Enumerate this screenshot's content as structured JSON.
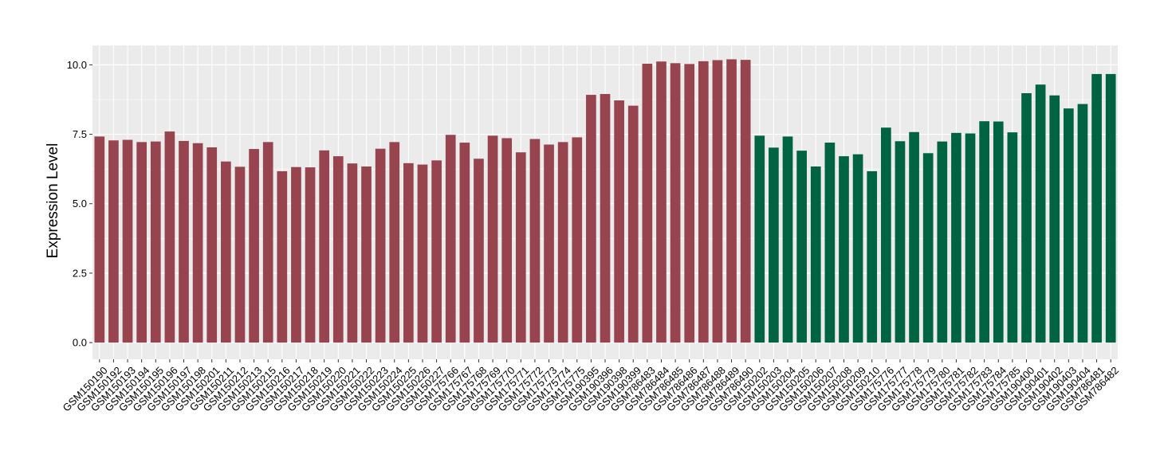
{
  "chart_data": {
    "type": "bar",
    "title": "",
    "xlabel": "",
    "ylabel": "Expression Level",
    "ylim": [
      -0.6,
      10.7
    ],
    "yticks": [
      0.0,
      2.5,
      5.0,
      7.5,
      10.0
    ],
    "ytick_labels": [
      "0.0",
      "2.5",
      "5.0",
      "7.5",
      "10.0"
    ],
    "grid": true,
    "legend": "none",
    "colors": {
      "group1": "#97444F",
      "group2": "#006442",
      "panel_bg": "#EBEBEB",
      "grid": "#FFFFFF"
    },
    "categories": [
      "GSM150190",
      "GSM150192",
      "GSM150193",
      "GSM150194",
      "GSM150195",
      "GSM150196",
      "GSM150197",
      "GSM150198",
      "GSM150201",
      "GSM150211",
      "GSM150212",
      "GSM150213",
      "GSM150215",
      "GSM150216",
      "GSM150217",
      "GSM150218",
      "GSM150219",
      "GSM150220",
      "GSM150221",
      "GSM150222",
      "GSM150223",
      "GSM150224",
      "GSM150225",
      "GSM150226",
      "GSM150227",
      "GSM175766",
      "GSM175767",
      "GSM175768",
      "GSM175769",
      "GSM175770",
      "GSM175771",
      "GSM175772",
      "GSM175773",
      "GSM175774",
      "GSM175775",
      "GSM190395",
      "GSM190396",
      "GSM190398",
      "GSM190399",
      "GSM786483",
      "GSM786484",
      "GSM786485",
      "GSM786486",
      "GSM786487",
      "GSM786488",
      "GSM786489",
      "GSM786490",
      "GSM150202",
      "GSM150203",
      "GSM150204",
      "GSM150205",
      "GSM150206",
      "GSM150207",
      "GSM150208",
      "GSM150209",
      "GSM150210",
      "GSM175776",
      "GSM175777",
      "GSM175778",
      "GSM175779",
      "GSM175780",
      "GSM175781",
      "GSM175782",
      "GSM175783",
      "GSM175784",
      "GSM175785",
      "GSM190400",
      "GSM190401",
      "GSM190402",
      "GSM190403",
      "GSM190404",
      "GSM786481",
      "GSM786482"
    ],
    "values": [
      7.42,
      7.28,
      7.3,
      7.22,
      7.24,
      7.6,
      7.26,
      7.18,
      7.03,
      6.52,
      6.33,
      6.97,
      7.22,
      6.17,
      6.32,
      6.31,
      6.92,
      6.71,
      6.45,
      6.34,
      6.98,
      7.22,
      6.46,
      6.41,
      6.56,
      7.48,
      7.2,
      6.62,
      7.45,
      7.36,
      6.85,
      7.33,
      7.13,
      7.22,
      7.39,
      8.92,
      8.95,
      8.72,
      8.53,
      10.04,
      10.12,
      10.06,
      10.03,
      10.13,
      10.17,
      10.2,
      10.18,
      7.45,
      7.02,
      7.42,
      6.91,
      6.34,
      7.2,
      6.71,
      6.78,
      6.17,
      7.74,
      7.25,
      7.58,
      6.82,
      7.24,
      7.55,
      7.53,
      7.97,
      7.96,
      7.57,
      8.98,
      9.29,
      8.9,
      8.43,
      8.59,
      9.67,
      9.67
    ],
    "group": [
      1,
      1,
      1,
      1,
      1,
      1,
      1,
      1,
      1,
      1,
      1,
      1,
      1,
      1,
      1,
      1,
      1,
      1,
      1,
      1,
      1,
      1,
      1,
      1,
      1,
      1,
      1,
      1,
      1,
      1,
      1,
      1,
      1,
      1,
      1,
      1,
      1,
      1,
      1,
      1,
      1,
      1,
      1,
      1,
      1,
      1,
      1,
      2,
      2,
      2,
      2,
      2,
      2,
      2,
      2,
      2,
      2,
      2,
      2,
      2,
      2,
      2,
      2,
      2,
      2,
      2,
      2,
      2,
      2,
      2,
      2,
      2,
      2
    ]
  }
}
